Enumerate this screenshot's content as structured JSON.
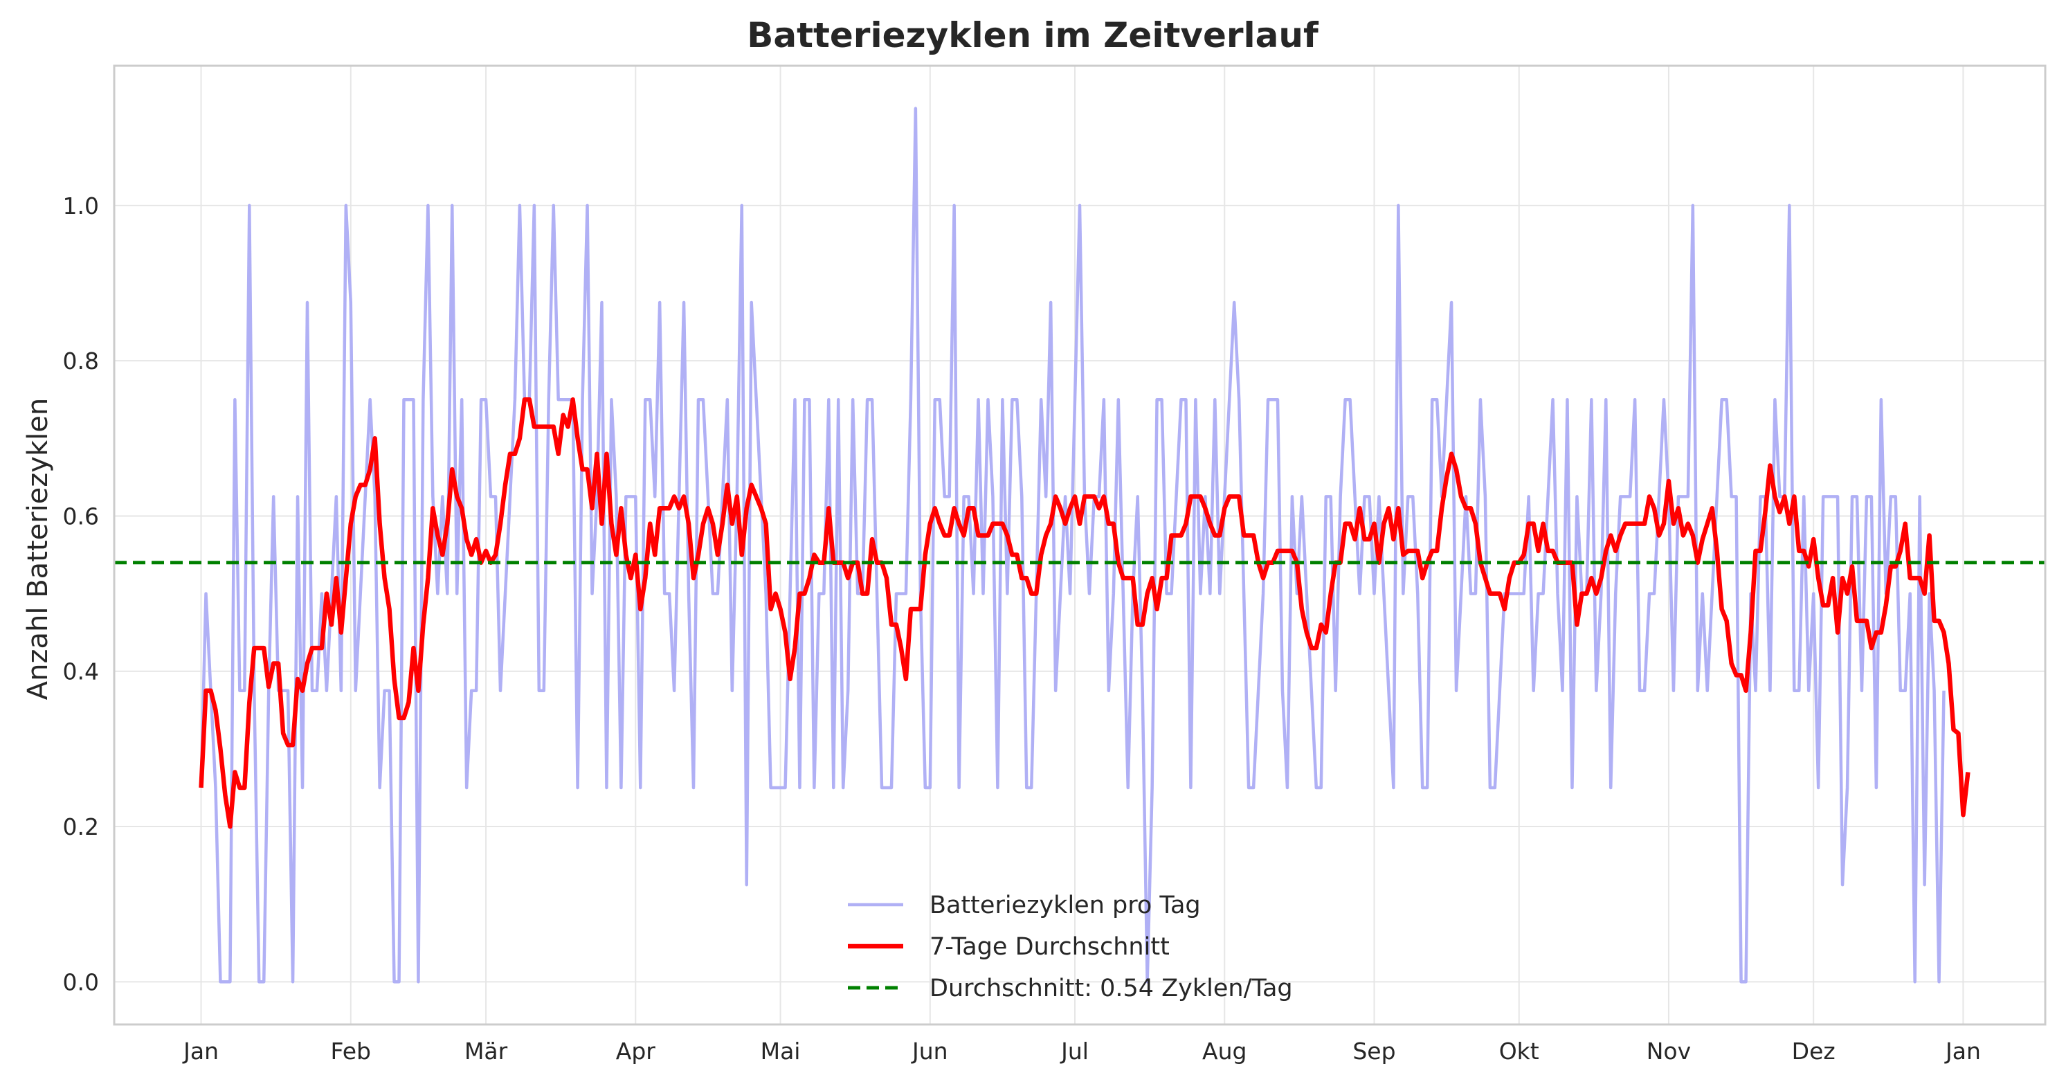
{
  "chart_data": {
    "type": "line",
    "title": "Batteriezyklen im Zeitverlauf",
    "xlabel": "",
    "ylabel": "Anzahl Batteriezyklen",
    "x_tick_labels": [
      "Jan",
      "Feb",
      "Mär",
      "Apr",
      "Mai",
      "Jun",
      "Jul",
      "Aug",
      "Sep",
      "Okt",
      "Nov",
      "Dez",
      "Jan"
    ],
    "x_tick_days": [
      0,
      31,
      59,
      90,
      120,
      151,
      181,
      212,
      243,
      273,
      304,
      334,
      365
    ],
    "y_ticks": [
      "0.0",
      "0.2",
      "0.4",
      "0.6",
      "0.8",
      "1.0"
    ],
    "y_tick_values": [
      0.0,
      0.2,
      0.4,
      0.6,
      0.8,
      1.0
    ],
    "xlim_days": [
      -18,
      382
    ],
    "ylim": [
      -0.055,
      1.18
    ],
    "grid": true,
    "legend_position": "bottom-center",
    "series": [
      {
        "name": "Batteriezyklen pro Tag",
        "color": "#b0b0f5",
        "style": "solid",
        "values": [
          0.25,
          0.5,
          0.375,
          0.25,
          0.0,
          0.0,
          0.0,
          0.75,
          0.375,
          0.375,
          1.0,
          0.375,
          0.0,
          0.0,
          0.375,
          0.625,
          0.375,
          0.375,
          0.375,
          0.0,
          0.625,
          0.25,
          0.875,
          0.375,
          0.375,
          0.5,
          0.375,
          0.5,
          0.625,
          0.375,
          1.0,
          0.875,
          0.375,
          0.5,
          0.625,
          0.75,
          0.625,
          0.25,
          0.375,
          0.375,
          0.0,
          0.0,
          0.75,
          0.75,
          0.75,
          0.0,
          0.75,
          1.0,
          0.625,
          0.5,
          0.625,
          0.5,
          1.0,
          0.5,
          0.75,
          0.25,
          0.375,
          0.375,
          0.75,
          0.75,
          0.625,
          0.625,
          0.375,
          0.5,
          0.625,
          0.75,
          1.0,
          0.75,
          0.75,
          1.0,
          0.375,
          0.375,
          0.75,
          1.0,
          0.75,
          0.75,
          0.75,
          0.75,
          0.25,
          0.75,
          1.0,
          0.5,
          0.625,
          0.875,
          0.25,
          0.75,
          0.625,
          0.25,
          0.625,
          0.625,
          0.625,
          0.25,
          0.75,
          0.75,
          0.625,
          0.875,
          0.5,
          0.5,
          0.375,
          0.625,
          0.875,
          0.5,
          0.25,
          0.75,
          0.75,
          0.625,
          0.5,
          0.5,
          0.625,
          0.75,
          0.375,
          0.625,
          1.0,
          0.125,
          0.875,
          0.75,
          0.625,
          0.5,
          0.25,
          0.25,
          0.25,
          0.25,
          0.5,
          0.75,
          0.25,
          0.75,
          0.75,
          0.25,
          0.5,
          0.5,
          0.75,
          0.25,
          0.75,
          0.25,
          0.375,
          0.75,
          0.5,
          0.5,
          0.75,
          0.75,
          0.5,
          0.25,
          0.25,
          0.25,
          0.5,
          0.5,
          0.5,
          0.75,
          1.125,
          0.5,
          0.25,
          0.25,
          0.75,
          0.75,
          0.625,
          0.625,
          1.0,
          0.25,
          0.625,
          0.625,
          0.5,
          0.75,
          0.5,
          0.75,
          0.625,
          0.25,
          0.75,
          0.5,
          0.75,
          0.75,
          0.625,
          0.25,
          0.25,
          0.5,
          0.75,
          0.625,
          0.875,
          0.375,
          0.5,
          0.625,
          0.5,
          0.75,
          1.0,
          0.625,
          0.5,
          0.625,
          0.625,
          0.75,
          0.375,
          0.5,
          0.75,
          0.5,
          0.25,
          0.5,
          0.625,
          0.375,
          0.0,
          0.25,
          0.75,
          0.75,
          0.5,
          0.5,
          0.625,
          0.75,
          0.75,
          0.25,
          0.75,
          0.5,
          0.625,
          0.5,
          0.75,
          0.5,
          0.625,
          0.75,
          0.875,
          0.75,
          0.5,
          0.25,
          0.25,
          0.375,
          0.5,
          0.75,
          0.75,
          0.75,
          0.375,
          0.25,
          0.625,
          0.5,
          0.625,
          0.5,
          0.375,
          0.25,
          0.25,
          0.625,
          0.625,
          0.375,
          0.625,
          0.75,
          0.75,
          0.625,
          0.5,
          0.625,
          0.625,
          0.5,
          0.625,
          0.5,
          0.375,
          0.25,
          1.0,
          0.5,
          0.625,
          0.625,
          0.5,
          0.25,
          0.25,
          0.75,
          0.75,
          0.625,
          0.75,
          0.875,
          0.375,
          0.5,
          0.625,
          0.5,
          0.5,
          0.75,
          0.625,
          0.25,
          0.25,
          0.375,
          0.5,
          0.5,
          0.5,
          0.5,
          0.5,
          0.625,
          0.375,
          0.5,
          0.5,
          0.625,
          0.75,
          0.5,
          0.375,
          0.75,
          0.25,
          0.625,
          0.5,
          0.5,
          0.75,
          0.375,
          0.5,
          0.75,
          0.25,
          0.5,
          0.625,
          0.625,
          0.625,
          0.75,
          0.375,
          0.375,
          0.5,
          0.5,
          0.625,
          0.75,
          0.625,
          0.375,
          0.625,
          0.625,
          0.625,
          1.0,
          0.375,
          0.5,
          0.375,
          0.5,
          0.625,
          0.75,
          0.75,
          0.625,
          0.625,
          0.0,
          0.0,
          0.5,
          0.375,
          0.625,
          0.625,
          0.375,
          0.75,
          0.625,
          0.625,
          1.0,
          0.375,
          0.375,
          0.625,
          0.375,
          0.5,
          0.25,
          0.625,
          0.625,
          0.625,
          0.625,
          0.125,
          0.25,
          0.625,
          0.625,
          0.375,
          0.625,
          0.625,
          0.25,
          0.75,
          0.5,
          0.625,
          0.625,
          0.375,
          0.375,
          0.5,
          0.0,
          0.625,
          0.125,
          0.5,
          0.375,
          0.0,
          0.375
        ]
      },
      {
        "name": "7-Tage Durchschnitt",
        "color": "#ff0000",
        "style": "solid",
        "values": [
          0.25,
          0.375,
          0.375,
          0.35,
          0.3,
          0.24,
          0.2,
          0.27,
          0.25,
          0.25,
          0.36,
          0.43,
          0.43,
          0.43,
          0.38,
          0.41,
          0.41,
          0.32,
          0.305,
          0.305,
          0.39,
          0.375,
          0.41,
          0.43,
          0.43,
          0.43,
          0.5,
          0.46,
          0.52,
          0.45,
          0.52,
          0.59,
          0.625,
          0.64,
          0.64,
          0.66,
          0.7,
          0.59,
          0.52,
          0.48,
          0.39,
          0.34,
          0.34,
          0.36,
          0.43,
          0.375,
          0.46,
          0.52,
          0.61,
          0.575,
          0.55,
          0.59,
          0.66,
          0.625,
          0.61,
          0.57,
          0.55,
          0.57,
          0.54,
          0.555,
          0.54,
          0.55,
          0.59,
          0.64,
          0.68,
          0.68,
          0.7,
          0.75,
          0.75,
          0.715,
          0.715,
          0.715,
          0.715,
          0.715,
          0.68,
          0.73,
          0.715,
          0.75,
          0.7,
          0.66,
          0.66,
          0.61,
          0.68,
          0.59,
          0.68,
          0.59,
          0.55,
          0.61,
          0.55,
          0.52,
          0.55,
          0.48,
          0.52,
          0.59,
          0.55,
          0.61,
          0.61,
          0.61,
          0.625,
          0.61,
          0.625,
          0.59,
          0.52,
          0.55,
          0.59,
          0.61,
          0.59,
          0.55,
          0.59,
          0.64,
          0.59,
          0.625,
          0.55,
          0.61,
          0.64,
          0.625,
          0.61,
          0.59,
          0.48,
          0.5,
          0.48,
          0.45,
          0.39,
          0.43,
          0.5,
          0.5,
          0.52,
          0.55,
          0.54,
          0.54,
          0.61,
          0.54,
          0.54,
          0.54,
          0.52,
          0.54,
          0.54,
          0.5,
          0.5,
          0.57,
          0.54,
          0.54,
          0.52,
          0.46,
          0.46,
          0.43,
          0.39,
          0.48,
          0.48,
          0.48,
          0.55,
          0.59,
          0.61,
          0.59,
          0.575,
          0.575,
          0.61,
          0.59,
          0.575,
          0.61,
          0.61,
          0.575,
          0.575,
          0.575,
          0.59,
          0.59,
          0.59,
          0.575,
          0.55,
          0.55,
          0.52,
          0.52,
          0.5,
          0.5,
          0.55,
          0.575,
          0.59,
          0.625,
          0.61,
          0.59,
          0.61,
          0.625,
          0.59,
          0.625,
          0.625,
          0.625,
          0.61,
          0.625,
          0.59,
          0.59,
          0.54,
          0.52,
          0.52,
          0.52,
          0.46,
          0.46,
          0.5,
          0.52,
          0.48,
          0.52,
          0.52,
          0.575,
          0.575,
          0.575,
          0.59,
          0.625,
          0.625,
          0.625,
          0.61,
          0.59,
          0.575,
          0.575,
          0.61,
          0.625,
          0.625,
          0.625,
          0.575,
          0.575,
          0.575,
          0.54,
          0.52,
          0.54,
          0.54,
          0.555,
          0.555,
          0.555,
          0.555,
          0.54,
          0.48,
          0.45,
          0.43,
          0.43,
          0.46,
          0.45,
          0.5,
          0.54,
          0.54,
          0.59,
          0.59,
          0.57,
          0.61,
          0.57,
          0.57,
          0.59,
          0.54,
          0.59,
          0.61,
          0.57,
          0.61,
          0.55,
          0.555,
          0.555,
          0.555,
          0.52,
          0.54,
          0.555,
          0.555,
          0.61,
          0.65,
          0.68,
          0.66,
          0.625,
          0.61,
          0.61,
          0.59,
          0.54,
          0.52,
          0.5,
          0.5,
          0.5,
          0.48,
          0.52,
          0.54,
          0.54,
          0.55,
          0.59,
          0.59,
          0.555,
          0.59,
          0.555,
          0.555,
          0.54,
          0.54,
          0.54,
          0.54,
          0.46,
          0.5,
          0.5,
          0.52,
          0.5,
          0.52,
          0.555,
          0.575,
          0.555,
          0.575,
          0.59,
          0.59,
          0.59,
          0.59,
          0.59,
          0.625,
          0.61,
          0.575,
          0.59,
          0.645,
          0.59,
          0.61,
          0.575,
          0.59,
          0.575,
          0.54,
          0.57,
          0.59,
          0.61,
          0.555,
          0.48,
          0.465,
          0.41,
          0.395,
          0.395,
          0.375,
          0.45,
          0.555,
          0.555,
          0.605,
          0.665,
          0.625,
          0.605,
          0.625,
          0.59,
          0.625,
          0.555,
          0.555,
          0.535,
          0.57,
          0.52,
          0.485,
          0.485,
          0.52,
          0.45,
          0.52,
          0.5,
          0.535,
          0.465,
          0.465,
          0.465,
          0.43,
          0.45,
          0.45,
          0.485,
          0.535,
          0.535,
          0.555,
          0.59,
          0.52,
          0.52,
          0.52,
          0.5,
          0.575,
          0.465,
          0.465,
          0.45,
          0.41,
          0.325,
          0.32,
          0.215,
          0.27
        ]
      },
      {
        "name": "Durchschnitt: 0.54 Zyklen/Tag",
        "color": "#008000",
        "style": "dashed",
        "values": [
          0.54
        ]
      }
    ],
    "mean": 0.54
  }
}
